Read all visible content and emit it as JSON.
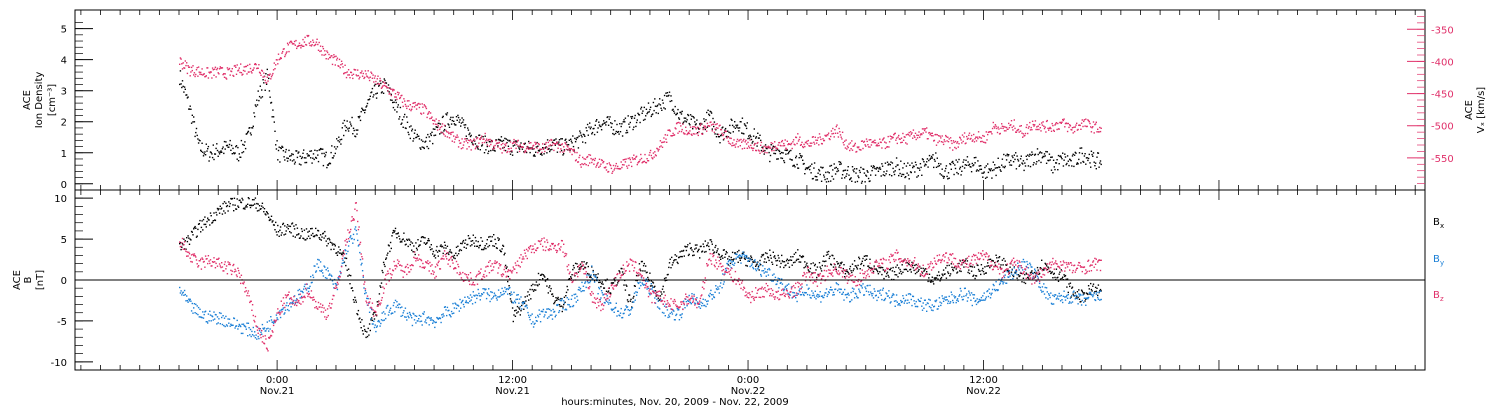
{
  "chart_data": [
    {
      "type": "scatter",
      "panel": "top",
      "ylabel": [
        "ACE",
        "Ion Density",
        "[cm⁻³]"
      ],
      "y2label": [
        "ACE",
        "Vₓ [km/s]"
      ],
      "ylim": [
        -0.2,
        5.6
      ],
      "y2lim": [
        -600,
        -320
      ],
      "yticks": [
        "0",
        "1",
        "2",
        "3",
        "4",
        "5"
      ],
      "y2ticks": [
        "-350",
        "-400",
        "-450",
        "-500",
        "-550"
      ],
      "y2tick_values": [
        -350,
        -400,
        -450,
        -500,
        -550
      ],
      "series": [
        {
          "color": "#000000",
          "axis": "left",
          "hours": [
            -5.0,
            -4.5,
            -4.0,
            -3.5,
            -3.0,
            -2.5,
            -2.0,
            -1.5,
            -1.0,
            -0.5,
            0.0,
            0.5,
            1.0,
            1.5,
            2.0,
            2.5,
            3.0,
            3.5,
            4.0,
            4.5,
            5.0,
            5.5,
            6.0,
            6.5,
            7.0,
            7.5,
            8.0,
            8.5,
            9.0,
            9.5,
            10.0,
            10.5,
            11.0,
            11.5,
            12.0,
            12.5,
            13.0,
            13.5,
            14.0,
            14.5,
            15.0,
            15.5,
            16.0,
            16.5,
            17.0,
            17.5,
            18.0,
            18.5,
            19.0,
            19.5,
            20.0,
            20.5,
            21.0,
            21.5,
            22.0,
            22.5,
            23.0,
            23.5,
            24.0,
            24.5,
            25.0,
            25.5,
            26.0,
            26.5,
            27.0,
            27.5,
            28.0,
            28.5,
            29.0,
            29.5,
            30.0,
            30.5,
            31.0,
            31.5,
            32.0,
            32.5,
            33.0,
            33.5,
            34.0,
            34.5,
            35.0,
            35.5,
            36.0,
            36.5,
            37.0,
            37.5,
            38.0,
            38.5,
            39.0,
            39.5,
            40.0,
            40.5,
            41.0,
            41.5,
            42.0
          ],
          "values": [
            3.5,
            2.5,
            1.2,
            1.0,
            1.1,
            1.2,
            1.0,
            1.5,
            2.8,
            3.5,
            1.0,
            0.9,
            0.8,
            0.9,
            1.0,
            0.8,
            1.2,
            2.0,
            1.8,
            2.5,
            3.0,
            3.2,
            2.5,
            2.0,
            1.5,
            1.3,
            1.6,
            2.0,
            2.2,
            1.8,
            1.5,
            1.3,
            1.2,
            1.3,
            1.2,
            1.2,
            1.1,
            1.2,
            1.3,
            1.2,
            1.3,
            1.5,
            1.8,
            2.0,
            1.9,
            1.8,
            2.0,
            2.2,
            2.4,
            2.6,
            2.8,
            2.2,
            2.0,
            1.8,
            2.2,
            1.6,
            1.8,
            2.0,
            1.7,
            1.4,
            1.0,
            1.1,
            0.9,
            0.8,
            0.5,
            0.4,
            0.3,
            0.5,
            0.4,
            0.3,
            0.3,
            0.4,
            0.5,
            0.6,
            0.4,
            0.5,
            0.6,
            0.8,
            0.4,
            0.5,
            0.6,
            0.7,
            0.4,
            0.5,
            0.7,
            0.8,
            0.6,
            0.9,
            1.0,
            0.6,
            0.8,
            0.7,
            1.0,
            0.8,
            0.7
          ]
        },
        {
          "color": "#e0306a",
          "axis": "right",
          "hours": [
            -5.0,
            -4.5,
            -4.0,
            -3.5,
            -3.0,
            -2.5,
            -2.0,
            -1.5,
            -1.0,
            -0.5,
            0.0,
            0.5,
            1.0,
            1.5,
            2.0,
            2.5,
            3.0,
            3.5,
            4.0,
            4.5,
            5.0,
            5.5,
            6.0,
            6.5,
            7.0,
            7.5,
            8.0,
            8.5,
            9.0,
            9.5,
            10.0,
            10.5,
            11.0,
            11.5,
            12.0,
            12.5,
            13.0,
            13.5,
            14.0,
            14.5,
            15.0,
            15.5,
            16.0,
            16.5,
            17.0,
            17.5,
            18.0,
            18.5,
            19.0,
            19.5,
            20.0,
            20.5,
            21.0,
            21.5,
            22.0,
            22.5,
            23.0,
            23.5,
            24.0,
            24.5,
            25.0,
            25.5,
            26.0,
            26.5,
            27.0,
            27.5,
            28.0,
            28.5,
            29.0,
            29.5,
            30.0,
            30.5,
            31.0,
            31.5,
            32.0,
            32.5,
            33.0,
            33.5,
            34.0,
            34.5,
            35.0,
            35.5,
            36.0,
            36.5,
            37.0,
            37.5,
            38.0,
            38.5,
            39.0,
            39.5,
            40.0,
            40.5,
            41.0,
            41.5,
            42.0
          ],
          "values": [
            -398,
            -412,
            -415,
            -418,
            -415,
            -418,
            -412,
            -410,
            -405,
            -430,
            -395,
            -378,
            -372,
            -367,
            -370,
            -390,
            -400,
            -415,
            -418,
            -420,
            -428,
            -440,
            -450,
            -465,
            -470,
            -475,
            -495,
            -505,
            -520,
            -528,
            -528,
            -518,
            -528,
            -535,
            -528,
            -532,
            -530,
            -535,
            -528,
            -532,
            -540,
            -556,
            -550,
            -560,
            -565,
            -562,
            -555,
            -550,
            -546,
            -530,
            -510,
            -500,
            -508,
            -505,
            -500,
            -505,
            -520,
            -530,
            -526,
            -533,
            -535,
            -525,
            -530,
            -520,
            -528,
            -522,
            -515,
            -505,
            -528,
            -535,
            -525,
            -530,
            -526,
            -518,
            -520,
            -513,
            -510,
            -520,
            -522,
            -530,
            -518,
            -515,
            -520,
            -500,
            -505,
            -498,
            -510,
            -495,
            -500,
            -500,
            -495,
            -505,
            -495,
            -500,
            -505
          ]
        }
      ]
    },
    {
      "type": "scatter",
      "panel": "bottom",
      "ylabel": [
        "ACE",
        "B",
        "[nT]"
      ],
      "ylim": [
        -11,
        11
      ],
      "yticks": [
        "-10",
        "-5",
        "0",
        "5",
        "10"
      ],
      "x_axis_label": "hours:minutes, Nov. 20, 2009 - Nov. 22, 2009",
      "xticks": [
        {
          "time": "0:00",
          "date": "Nov.21"
        },
        {
          "time": "12:00",
          "date": "Nov.21"
        },
        {
          "time": "0:00",
          "date": "Nov.22"
        },
        {
          "time": "12:00",
          "date": "Nov.22"
        }
      ],
      "series": [
        {
          "name": "B",
          "sub": "x",
          "color": "#000000",
          "hours": [
            -5.0,
            -4.5,
            -4.0,
            -3.5,
            -3.0,
            -2.5,
            -2.0,
            -1.5,
            -1.0,
            -0.5,
            0.0,
            0.5,
            1.0,
            1.5,
            2.0,
            2.5,
            3.0,
            3.5,
            4.0,
            4.5,
            5.0,
            5.5,
            6.0,
            6.5,
            7.0,
            7.5,
            8.0,
            8.5,
            9.0,
            9.5,
            10.0,
            10.5,
            11.0,
            11.5,
            12.0,
            12.5,
            13.0,
            13.5,
            14.0,
            14.5,
            15.0,
            15.5,
            16.0,
            16.5,
            17.0,
            17.5,
            18.0,
            18.5,
            19.0,
            19.5,
            20.0,
            20.5,
            21.0,
            21.5,
            22.0,
            22.5,
            23.0,
            23.5,
            24.0,
            24.5,
            25.0,
            25.5,
            26.0,
            26.5,
            27.0,
            27.5,
            28.0,
            28.5,
            29.0,
            29.5,
            30.0,
            30.5,
            31.0,
            31.5,
            32.0,
            32.5,
            33.0,
            33.5,
            34.0,
            34.5,
            35.0,
            35.5,
            36.0,
            36.5,
            37.0,
            37.5,
            38.0,
            38.5,
            39.0,
            39.5,
            40.0,
            40.5,
            41.0,
            41.5,
            42.0
          ],
          "values": [
            4.0,
            5.0,
            6.5,
            7.5,
            8.5,
            9.2,
            9.5,
            9.5,
            9.3,
            8.0,
            6.0,
            6.5,
            6.0,
            5.5,
            6.0,
            5.0,
            4.0,
            2.0,
            -3.0,
            -7.0,
            -4.0,
            3.0,
            6.0,
            5.0,
            4.0,
            5.0,
            3.5,
            4.0,
            3.0,
            4.5,
            5.0,
            4.5,
            5.0,
            4.0,
            -4.5,
            -3.0,
            -1.0,
            1.0,
            -2.0,
            -3.0,
            1.0,
            2.0,
            1.0,
            0.0,
            -1.0,
            1.0,
            -3.0,
            2.0,
            0.0,
            -2.0,
            2.0,
            3.0,
            4.0,
            3.5,
            4.5,
            3.5,
            2.5,
            3.0,
            2.5,
            2.0,
            3.0,
            2.5,
            2.0,
            3.0,
            2.0,
            1.0,
            3.0,
            2.0,
            1.0,
            2.0,
            2.5,
            1.5,
            0.5,
            1.0,
            2.0,
            1.5,
            1.0,
            0.0,
            1.0,
            1.5,
            2.0,
            1.0,
            1.5,
            2.5,
            2.0,
            1.0,
            0.0,
            1.0,
            2.0,
            1.0,
            0.5,
            -1.5,
            -2.0,
            -1.0,
            -1.5
          ]
        },
        {
          "name": "B",
          "sub": "y",
          "color": "#1a7fd6",
          "hours": [
            -5.0,
            -4.5,
            -4.0,
            -3.5,
            -3.0,
            -2.5,
            -2.0,
            -1.5,
            -1.0,
            -0.5,
            0.0,
            0.5,
            1.0,
            1.5,
            2.0,
            2.5,
            3.0,
            3.5,
            4.0,
            4.5,
            5.0,
            5.5,
            6.0,
            6.5,
            7.0,
            7.5,
            8.0,
            8.5,
            9.0,
            9.5,
            10.0,
            10.5,
            11.0,
            11.5,
            12.0,
            12.5,
            13.0,
            13.5,
            14.0,
            14.5,
            15.0,
            15.5,
            16.0,
            16.5,
            17.0,
            17.5,
            18.0,
            18.5,
            19.0,
            19.5,
            20.0,
            20.5,
            21.0,
            21.5,
            22.0,
            22.5,
            23.0,
            23.5,
            24.0,
            24.5,
            25.0,
            25.5,
            26.0,
            26.5,
            27.0,
            27.5,
            28.0,
            28.5,
            29.0,
            29.5,
            30.0,
            30.5,
            31.0,
            31.5,
            32.0,
            32.5,
            33.0,
            33.5,
            34.0,
            34.5,
            35.0,
            35.5,
            36.0,
            36.5,
            37.0,
            37.5,
            38.0,
            38.5,
            39.0,
            39.5,
            40.0,
            40.5,
            41.0,
            41.5,
            42.0
          ],
          "values": [
            -1.0,
            -3.0,
            -4.0,
            -4.5,
            -4.5,
            -5.0,
            -5.5,
            -6.0,
            -6.5,
            -5.5,
            -4.0,
            -3.0,
            -2.0,
            -1.0,
            2.0,
            1.0,
            -1.0,
            4.0,
            6.0,
            -2.0,
            -6.0,
            -4.0,
            -3.0,
            -4.0,
            -5.0,
            -4.5,
            -5.0,
            -4.0,
            -3.5,
            -2.5,
            -2.0,
            -1.5,
            -2.0,
            -1.0,
            -2.0,
            -3.0,
            -5.0,
            -4.0,
            -4.0,
            -3.0,
            -2.5,
            -1.0,
            1.0,
            -2.0,
            -3.0,
            -4.0,
            -3.5,
            0.0,
            -1.0,
            -3.0,
            -4.0,
            -4.0,
            -2.0,
            -3.0,
            -2.0,
            -1.0,
            2.0,
            3.0,
            2.5,
            1.5,
            1.0,
            0.0,
            -1.0,
            -2.0,
            -1.0,
            -2.0,
            -1.5,
            -1.0,
            -2.0,
            -1.5,
            -1.0,
            -2.0,
            -1.5,
            -2.5,
            -2.0,
            -2.5,
            -3.0,
            -3.0,
            -2.5,
            -2.0,
            -1.5,
            -2.5,
            -2.0,
            -1.0,
            0.0,
            1.0,
            2.0,
            1.0,
            -1.0,
            -2.5,
            -2.0,
            -2.0,
            -2.5,
            -2.0,
            -2.0
          ]
        },
        {
          "name": "B",
          "sub": "z",
          "color": "#e0306a",
          "hours": [
            -5.0,
            -4.5,
            -4.0,
            -3.5,
            -3.0,
            -2.5,
            -2.0,
            -1.5,
            -1.0,
            -0.5,
            0.0,
            0.5,
            1.0,
            1.5,
            2.0,
            2.5,
            3.0,
            3.5,
            4.0,
            4.5,
            5.0,
            5.5,
            6.0,
            6.5,
            7.0,
            7.5,
            8.0,
            8.5,
            9.0,
            9.5,
            10.0,
            10.5,
            11.0,
            11.5,
            12.0,
            12.5,
            13.0,
            13.5,
            14.0,
            14.5,
            15.0,
            15.5,
            16.0,
            16.5,
            17.0,
            17.5,
            18.0,
            18.5,
            19.0,
            19.5,
            20.0,
            20.5,
            21.0,
            21.5,
            22.0,
            22.5,
            23.0,
            23.5,
            24.0,
            24.5,
            25.0,
            25.5,
            26.0,
            26.5,
            27.0,
            27.5,
            28.0,
            28.5,
            29.0,
            29.5,
            30.0,
            30.5,
            31.0,
            31.5,
            32.0,
            32.5,
            33.0,
            33.5,
            34.0,
            34.5,
            35.0,
            35.5,
            36.0,
            36.5,
            37.0,
            37.5,
            38.0,
            38.5,
            39.0,
            39.5,
            40.0,
            40.5,
            41.0,
            41.5,
            42.0
          ],
          "values": [
            5.0,
            3.0,
            2.0,
            2.5,
            2.0,
            1.5,
            1.0,
            -2.0,
            -6.0,
            -8.0,
            -4.0,
            -2.0,
            -3.0,
            -1.0,
            -3.0,
            -4.0,
            -1.0,
            5.0,
            9.0,
            -2.0,
            -4.0,
            0.0,
            2.0,
            1.0,
            3.0,
            2.0,
            1.0,
            3.0,
            2.0,
            0.5,
            0.0,
            1.0,
            2.0,
            1.0,
            1.0,
            3.0,
            4.0,
            4.5,
            4.0,
            4.5,
            0.0,
            2.0,
            -2.0,
            -3.0,
            -1.0,
            1.0,
            2.0,
            1.0,
            -2.0,
            -2.0,
            -3.0,
            -3.0,
            -2.0,
            -3.0,
            3.0,
            2.0,
            1.0,
            0.0,
            -2.0,
            -1.5,
            -1.0,
            -2.0,
            -1.5,
            -1.0,
            1.0,
            0.0,
            1.0,
            1.5,
            0.5,
            0.0,
            1.0,
            2.0,
            2.0,
            3.0,
            2.5,
            2.0,
            1.0,
            2.5,
            3.0,
            2.5,
            2.0,
            2.5,
            3.0,
            2.0,
            1.0,
            2.0,
            1.5,
            0.0,
            1.0,
            2.0,
            2.0,
            1.5,
            1.5,
            2.0,
            2.0
          ]
        }
      ]
    }
  ]
}
